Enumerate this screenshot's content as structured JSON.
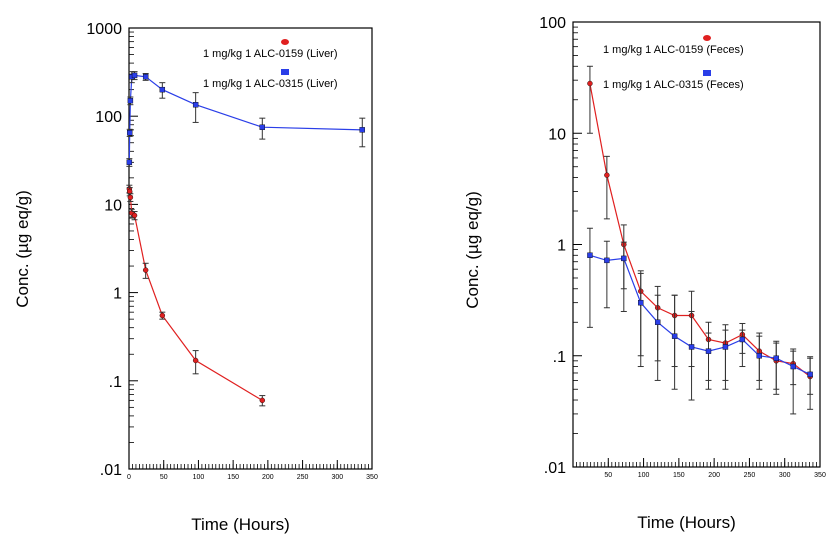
{
  "chart_data": [
    {
      "type": "line",
      "yscale": "log",
      "xlabel": "Time (Hours)",
      "ylabel": "Conc. (µg eq/g)",
      "xlim": [
        0,
        350
      ],
      "ylim": [
        0.01,
        1000
      ],
      "x_ticks": [
        "0",
        "50",
        "100",
        "150",
        "200",
        "250",
        "300",
        "350"
      ],
      "y_ticks": [
        ".01",
        ".1",
        "1",
        "10",
        "100",
        "1000"
      ],
      "legend_position": "top-right",
      "series": [
        {
          "name": "1 mg/kg 1 ALC-0159 (Liver)",
          "color": "#e02020",
          "marker": "circle",
          "x": [
            0.5,
            1,
            2,
            4,
            8,
            24,
            48,
            96,
            192
          ],
          "y": [
            15,
            14,
            12,
            8,
            7.5,
            1.8,
            0.55,
            0.17,
            0.06
          ],
          "err": [
            1.5,
            1.5,
            1.2,
            0.8,
            0.8,
            0.35,
            0.05,
            0.05,
            0.008
          ]
        },
        {
          "name": "1 mg/kg 1 ALC-0315 (Liver)",
          "color": "#2a3ee8",
          "marker": "square",
          "x": [
            0.5,
            1,
            2,
            4,
            8,
            24,
            48,
            96,
            192,
            336
          ],
          "y": [
            30,
            65,
            150,
            280,
            290,
            280,
            200,
            135,
            75,
            70
          ],
          "err": [
            3,
            6,
            15,
            40,
            30,
            25,
            40,
            50,
            20,
            25
          ]
        }
      ]
    },
    {
      "type": "line",
      "yscale": "log",
      "xlabel": "Time (Hours)",
      "ylabel": "Conc. (µg eq/g)",
      "xlim": [
        0,
        350
      ],
      "ylim": [
        0.01,
        100
      ],
      "x_ticks": [
        "50",
        "100",
        "150",
        "200",
        "250",
        "300",
        "350"
      ],
      "y_ticks": [
        ".01",
        ".1",
        "1",
        "10",
        "100"
      ],
      "legend_position": "top-right",
      "series": [
        {
          "name": "1 mg/kg 1 ALC-0159 (Feces)",
          "color": "#e02020",
          "marker": "circle",
          "x": [
            24,
            48,
            72,
            96,
            120,
            144,
            168,
            192,
            216,
            240,
            264,
            288,
            312,
            336
          ],
          "y": [
            28,
            4.2,
            1.0,
            0.38,
            0.27,
            0.23,
            0.23,
            0.14,
            0.13,
            0.155,
            0.11,
            0.09,
            0.085,
            0.065
          ],
          "err_lo": [
            18,
            2.5,
            0.6,
            0.3,
            0.18,
            0.15,
            0.15,
            0.08,
            0.07,
            0.05,
            0.05,
            0.04,
            0.03,
            0.02
          ],
          "err_hi": [
            12,
            2.0,
            0.5,
            0.2,
            0.15,
            0.12,
            0.15,
            0.06,
            0.06,
            0.04,
            0.05,
            0.04,
            0.03,
            0.03
          ]
        },
        {
          "name": "1 mg/kg 1 ALC-0315 (Feces)",
          "color": "#2a3ee8",
          "marker": "square",
          "x": [
            24,
            48,
            72,
            96,
            120,
            144,
            168,
            192,
            216,
            240,
            264,
            288,
            312,
            336
          ],
          "y": [
            0.8,
            0.72,
            0.75,
            0.3,
            0.2,
            0.15,
            0.12,
            0.11,
            0.12,
            0.14,
            0.1,
            0.095,
            0.08,
            0.068
          ],
          "err_lo": [
            0.62,
            0.45,
            0.5,
            0.2,
            0.14,
            0.1,
            0.08,
            0.06,
            0.07,
            0.06,
            0.05,
            0.05,
            0.05,
            0.035
          ],
          "err_hi": [
            0.6,
            0.35,
            0.3,
            0.25,
            0.15,
            0.2,
            0.13,
            0.05,
            0.05,
            0.03,
            0.05,
            0.04,
            0.03,
            0.03
          ]
        }
      ]
    }
  ]
}
